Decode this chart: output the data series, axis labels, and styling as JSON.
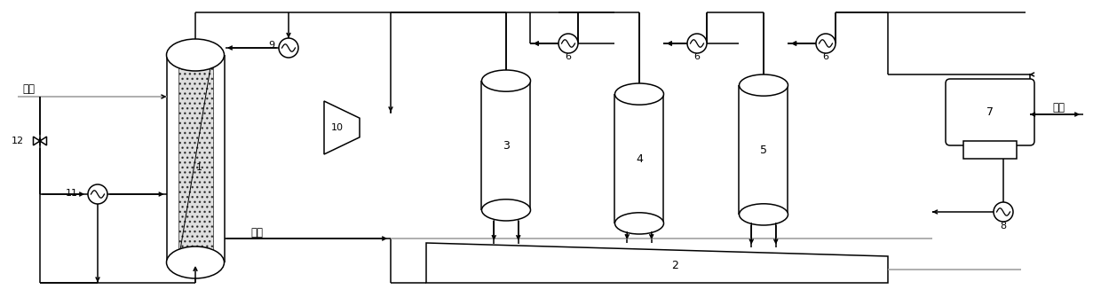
{
  "bg": "#ffffff",
  "lc": "#000000",
  "gray": "#999999",
  "figsize": [
    12.4,
    3.44
  ],
  "dpi": 100,
  "feed_label": "进料",
  "ethane_label": "乙烷",
  "ethylene_label": "乙烯"
}
